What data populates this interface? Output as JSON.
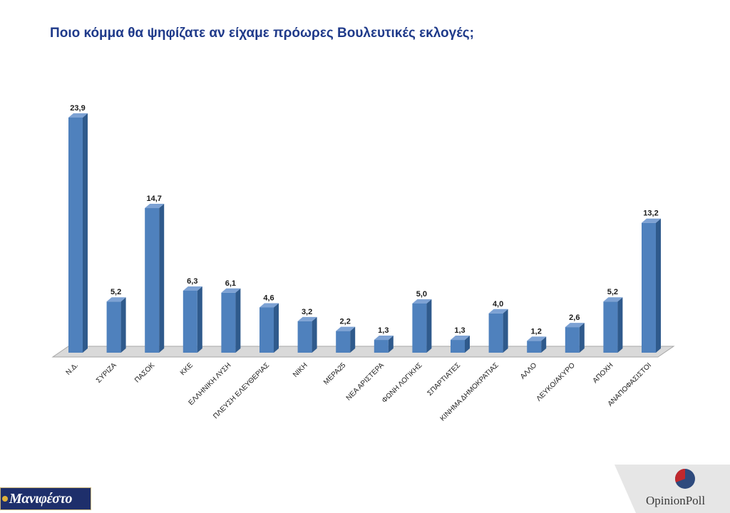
{
  "title": "Ποιο κόμμα θα ψηφίζατε αν είχαμε πρόωρες Βουλευτικές εκλογές;",
  "chart_data": {
    "type": "bar",
    "title": "Ποιο κόμμα θα ψηφίζατε αν είχαμε πρόωρες Βουλευτικές εκλογές;",
    "categories": [
      "Ν.Δ.",
      "ΣΥΡΙΖΑ",
      "ΠΑΣΟΚ",
      "ΚΚΕ",
      "ΕΛΛΗΝΙΚΗ ΛΥΣΗ",
      "ΠΛΕΥΣΗ ΕΛΕΥΘΕΡΙΑΣ",
      "ΝΙΚΗ",
      "ΜΕΡΑ25",
      "ΝΕΑ ΑΡΙΣΤΕΡΑ",
      "ΦΩΝΗ ΛΟΓΙΚΗΣ",
      "ΣΠΑΡΤΙΑΤΕΣ",
      "ΚΙΝΗΜΑ ΔΗΜΟΚΡΑΤΙΑΣ",
      "ΑΛΛΟ",
      "ΛΕΥΚΟ/ΑΚΥΡΟ",
      "ΑΠΟΧΗ",
      "ΑΝΑΠΟΦΑΣΙΣΤΟΙ"
    ],
    "values": [
      23.9,
      5.2,
      14.7,
      6.3,
      6.1,
      4.6,
      3.2,
      2.2,
      1.3,
      5.0,
      1.3,
      4.0,
      1.2,
      2.6,
      5.2,
      13.2
    ],
    "value_labels": [
      "23,9",
      "5,2",
      "14,7",
      "6,3",
      "6,1",
      "4,6",
      "3,2",
      "2,2",
      "1,3",
      "5,0",
      "1,3",
      "4,0",
      "1,2",
      "2,6",
      "5,2",
      "13,2"
    ],
    "xlabel": "",
    "ylabel": "",
    "ylim": [
      0,
      25
    ],
    "grid": false,
    "legend": "none",
    "style": "3d-column",
    "colors": {
      "bar_front": "#4f81bd",
      "bar_side": "#2f5a8c",
      "bar_top": "#7da2d4",
      "floor": "#d9d9d9",
      "floor_edge": "#a6a6a6",
      "title": "#1f3a8a"
    }
  },
  "logos": {
    "left": "Μανιφέστο",
    "right": "OpinionPoll"
  }
}
